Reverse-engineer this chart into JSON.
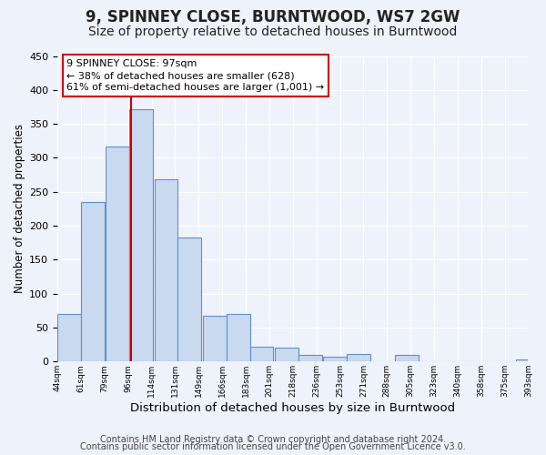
{
  "title": "9, SPINNEY CLOSE, BURNTWOOD, WS7 2GW",
  "subtitle": "Size of property relative to detached houses in Burntwood",
  "xlabel": "Distribution of detached houses by size in Burntwood",
  "ylabel": "Number of detached properties",
  "bar_left_edges": [
    44,
    61,
    79,
    96,
    114,
    131,
    149,
    166,
    183,
    201,
    218,
    236,
    253,
    271,
    288,
    305,
    323,
    340,
    358,
    375
  ],
  "bar_heights": [
    70,
    235,
    317,
    372,
    268,
    183,
    68,
    70,
    22,
    20,
    10,
    7,
    11,
    0,
    10,
    0,
    0,
    0,
    0,
    3
  ],
  "bin_width": 17,
  "bar_color": "#c9d9f0",
  "bar_edge_color": "#6090c8",
  "property_line_x": 97,
  "property_line_color": "#cc0000",
  "annotation_line1": "9 SPINNEY CLOSE: 97sqm",
  "annotation_line2": "← 38% of detached houses are smaller (628)",
  "annotation_line3": "61% of semi-detached houses are larger (1,001) →",
  "annotation_box_color": "#cc0000",
  "annotation_box_fill": "#ffffff",
  "ylim": [
    0,
    450
  ],
  "yticks": [
    0,
    50,
    100,
    150,
    200,
    250,
    300,
    350,
    400,
    450
  ],
  "x_tick_labels": [
    "44sqm",
    "61sqm",
    "79sqm",
    "96sqm",
    "114sqm",
    "131sqm",
    "149sqm",
    "166sqm",
    "183sqm",
    "201sqm",
    "218sqm",
    "236sqm",
    "253sqm",
    "271sqm",
    "288sqm",
    "305sqm",
    "323sqm",
    "340sqm",
    "358sqm",
    "375sqm",
    "393sqm"
  ],
  "background_color": "#eef2fb",
  "footer_line1": "Contains HM Land Registry data © Crown copyright and database right 2024.",
  "footer_line2": "Contains public sector information licensed under the Open Government Licence v3.0.",
  "title_fontsize": 12,
  "subtitle_fontsize": 10,
  "xlabel_fontsize": 9.5,
  "ylabel_fontsize": 8.5,
  "footer_fontsize": 7.0
}
